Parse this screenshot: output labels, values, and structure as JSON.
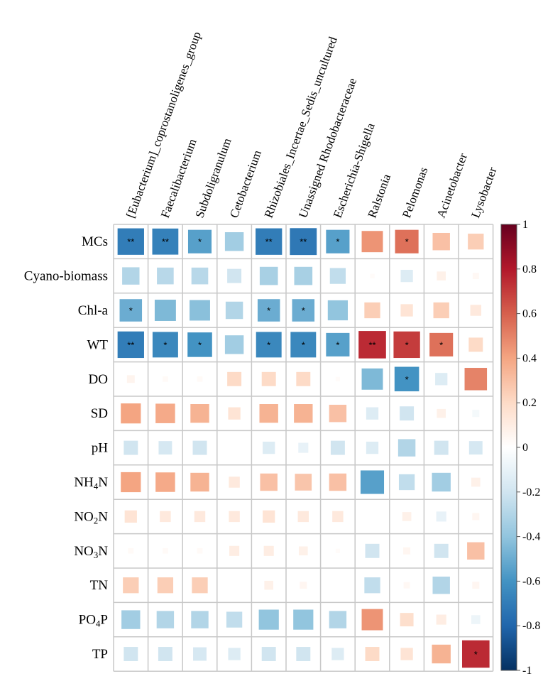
{
  "chart_data": {
    "type": "heatmap",
    "style": "correlation-square",
    "columns": [
      "[Eubacterium]_coprostanoligenes_group",
      "Faecalibacterium",
      "Subdoligranulum",
      "Cetobacterium",
      "Rhizobiales_Incertae_Sedis_uncultured",
      "Unassigned Rhodobacteraceae",
      "Escherichia-Shigella",
      "Ralstonia",
      "Pelomonas",
      "Acinetobacter",
      "Lysobacter"
    ],
    "rows": [
      {
        "label": "MCs",
        "sub": ""
      },
      {
        "label": "Cyano-biomass",
        "sub": ""
      },
      {
        "label": "Chl-a",
        "sub": ""
      },
      {
        "label": "WT",
        "sub": ""
      },
      {
        "label": "DO",
        "sub": ""
      },
      {
        "label": "SD",
        "sub": ""
      },
      {
        "label": "pH",
        "sub": ""
      },
      {
        "label": "NH",
        "sub": "4",
        "suffix": "N"
      },
      {
        "label": "NO",
        "sub": "2",
        "suffix": "N"
      },
      {
        "label": "NO",
        "sub": "3",
        "suffix": "N"
      },
      {
        "label": "TN",
        "sub": ""
      },
      {
        "label": "PO",
        "sub": "4",
        "suffix": "P"
      },
      {
        "label": "TP",
        "sub": ""
      }
    ],
    "values": [
      [
        -0.7,
        -0.68,
        -0.55,
        -0.35,
        -0.7,
        -0.72,
        -0.55,
        0.45,
        0.55,
        0.3,
        0.25
      ],
      [
        -0.3,
        -0.28,
        -0.28,
        -0.2,
        -0.33,
        -0.33,
        -0.25,
        0.02,
        -0.15,
        0.08,
        0.04
      ],
      [
        -0.5,
        -0.45,
        -0.42,
        -0.3,
        -0.5,
        -0.5,
        -0.4,
        0.25,
        0.15,
        0.25,
        0.12
      ],
      [
        -0.7,
        -0.65,
        -0.6,
        -0.35,
        -0.65,
        -0.65,
        -0.55,
        0.75,
        0.7,
        0.55,
        0.2
      ],
      [
        0.06,
        0.03,
        0.03,
        0.2,
        0.2,
        0.2,
        0.02,
        -0.45,
        -0.6,
        -0.15,
        0.5
      ],
      [
        0.4,
        0.38,
        0.35,
        0.15,
        0.35,
        0.35,
        0.3,
        -0.15,
        -0.2,
        0.08,
        -0.05
      ],
      [
        -0.2,
        -0.18,
        -0.2,
        0.0,
        -0.15,
        -0.1,
        -0.2,
        -0.15,
        -0.3,
        -0.2,
        -0.18
      ],
      [
        0.4,
        0.38,
        0.35,
        0.12,
        0.3,
        0.28,
        0.3,
        -0.55,
        -0.25,
        -0.35,
        0.08
      ],
      [
        0.15,
        0.12,
        0.12,
        0.12,
        0.15,
        0.12,
        0.12,
        0.0,
        0.08,
        -0.1,
        0.05
      ],
      [
        0.03,
        0.03,
        0.03,
        0.1,
        0.1,
        0.08,
        0.02,
        -0.2,
        0.05,
        -0.2,
        0.3
      ],
      [
        0.25,
        0.25,
        0.25,
        0.0,
        0.08,
        0.05,
        0.0,
        -0.25,
        0.04,
        -0.3,
        0.05
      ],
      [
        -0.35,
        -0.3,
        -0.3,
        -0.25,
        -0.4,
        -0.4,
        -0.3,
        0.45,
        0.18,
        0.1,
        -0.08
      ],
      [
        -0.2,
        -0.2,
        -0.18,
        -0.15,
        -0.2,
        -0.2,
        -0.15,
        0.2,
        0.15,
        0.35,
        0.75
      ]
    ],
    "significance": [
      [
        "**",
        "**",
        "*",
        "",
        "**",
        "**",
        "*",
        "",
        "*",
        "",
        ""
      ],
      [
        "",
        "",
        "",
        "",
        "",
        "",
        "",
        "",
        "",
        "",
        ""
      ],
      [
        "*",
        "",
        "",
        "",
        "*",
        "*",
        "",
        "",
        "",
        "",
        ""
      ],
      [
        "**",
        "*",
        "*",
        "",
        "*",
        "*",
        "*",
        "**",
        "*",
        "*",
        ""
      ],
      [
        "",
        "",
        "",
        "",
        "",
        "",
        "",
        "",
        "*",
        "",
        ""
      ],
      [
        "",
        "",
        "",
        "",
        "",
        "",
        "",
        "",
        "",
        "",
        ""
      ],
      [
        "",
        "",
        "",
        "",
        "",
        "",
        "",
        "",
        "",
        "",
        ""
      ],
      [
        "",
        "",
        "",
        "",
        "",
        "",
        "",
        "",
        "",
        "",
        ""
      ],
      [
        "",
        "",
        "",
        "",
        "",
        "",
        "",
        "",
        "",
        "",
        ""
      ],
      [
        "",
        "",
        "",
        "",
        "",
        "",
        "",
        "",
        "",
        "",
        ""
      ],
      [
        "",
        "",
        "",
        "",
        "",
        "",
        "",
        "",
        "",
        "",
        ""
      ],
      [
        "",
        "",
        "",
        "",
        "",
        "",
        "",
        "",
        "",
        "",
        ""
      ],
      [
        "",
        "",
        "",
        "",
        "",
        "",
        "",
        "",
        "",
        "",
        "*"
      ]
    ],
    "colorbar": {
      "range": [
        -1,
        1
      ],
      "ticks": [
        "1",
        "0.8",
        "0.6",
        "0.4",
        "0.2",
        "0",
        "-0.2",
        "-0.4",
        "-0.6",
        "-0.8",
        "-1"
      ],
      "colors": [
        "#67001F",
        "#B2182B",
        "#D6604D",
        "#F4A582",
        "#FDDBC7",
        "#FFFFFF",
        "#D1E5F0",
        "#92C5DE",
        "#4393C3",
        "#2166AC",
        "#053061"
      ]
    },
    "grid_color": "#c8c8c8"
  }
}
